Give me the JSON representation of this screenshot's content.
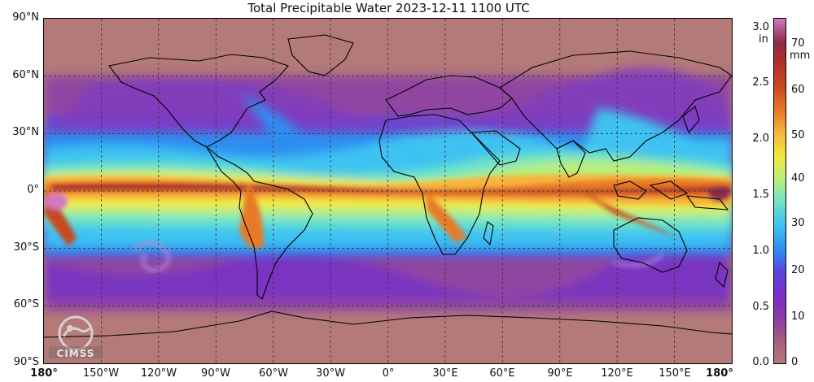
{
  "title": "Total Precipitable Water  2023-12-11 1100 UTC",
  "lat_labels": [
    "90°N",
    "60°N",
    "30°N",
    "0°",
    "30°S",
    "60°S",
    "90°S"
  ],
  "lon_labels": [
    "180°",
    "150°W",
    "120°W",
    "90°W",
    "60°W",
    "30°W",
    "0°",
    "30°E",
    "60°E",
    "90°E",
    "120°E",
    "150°E",
    "180°"
  ],
  "colorbar": {
    "inch_labels": [
      "3.0",
      "2.5",
      "2.0",
      "1.5",
      "1.0",
      "0.5",
      "0.0"
    ],
    "inch_unit": "in",
    "mm_labels": [
      "70",
      "60",
      "50",
      "40",
      "30",
      "20",
      "10",
      "0"
    ],
    "mm_unit": "mm",
    "colors": [
      "#b9787a",
      "#a45c80",
      "#8a3aa8",
      "#7a2ec8",
      "#5a48e0",
      "#2f8ef0",
      "#3cc2f2",
      "#6fe4c8",
      "#b8ef7a",
      "#f2e840",
      "#f8b43c",
      "#e87a28",
      "#c84a1e",
      "#b0302a",
      "#8e2a46",
      "#d278c0"
    ]
  },
  "logo": {
    "text": "CIMSS"
  }
}
